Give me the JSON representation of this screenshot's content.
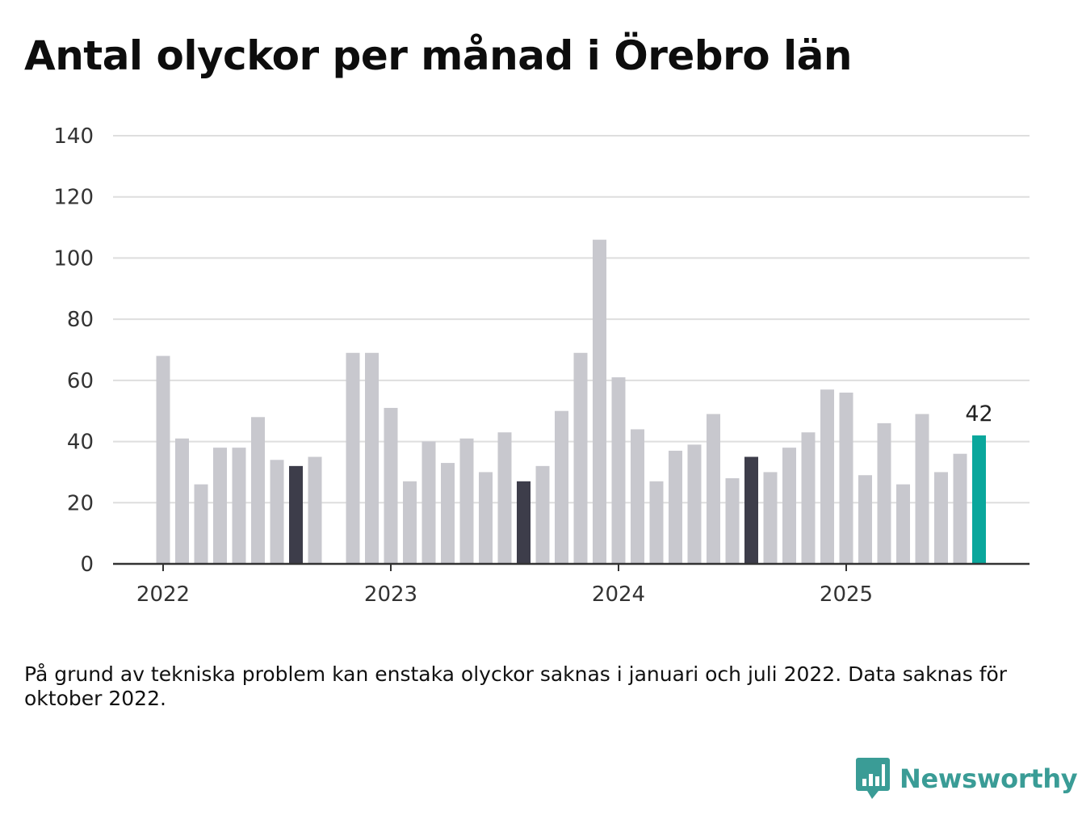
{
  "title": "Antal olyckor per månad i Örebro län",
  "note": "På grund av tekniska problem kan enstaka olyckor saknas i januari och juli 2022. Data saknas för oktober 2022.",
  "brand": {
    "name": "Newsworthy",
    "icon": "newsworthy-chart-bubble-icon",
    "color": "#3a9c96"
  },
  "chart_data": {
    "type": "bar",
    "ylim": [
      0,
      140
    ],
    "yticks": [
      0,
      20,
      40,
      60,
      80,
      100,
      120,
      140
    ],
    "xticks": [
      "2022",
      "2023",
      "2024",
      "2025"
    ],
    "grid": true,
    "colors": {
      "default": "#c8c8ce",
      "highlight": "#3d3d4a",
      "latest": "#0aa79c"
    },
    "bars": [
      {
        "month": "2022-01",
        "value": 68
      },
      {
        "month": "2022-02",
        "value": 41
      },
      {
        "month": "2022-03",
        "value": 26
      },
      {
        "month": "2022-04",
        "value": 38
      },
      {
        "month": "2022-05",
        "value": 38
      },
      {
        "month": "2022-06",
        "value": 48
      },
      {
        "month": "2022-07",
        "value": 34
      },
      {
        "month": "2022-08",
        "value": 32,
        "highlight": true
      },
      {
        "month": "2022-09",
        "value": 35
      },
      {
        "month": "2022-10",
        "value": null
      },
      {
        "month": "2022-11",
        "value": 69
      },
      {
        "month": "2022-12",
        "value": 69
      },
      {
        "month": "2023-01",
        "value": 51
      },
      {
        "month": "2023-02",
        "value": 27
      },
      {
        "month": "2023-03",
        "value": 40
      },
      {
        "month": "2023-04",
        "value": 33
      },
      {
        "month": "2023-05",
        "value": 41
      },
      {
        "month": "2023-06",
        "value": 30
      },
      {
        "month": "2023-07",
        "value": 43
      },
      {
        "month": "2023-08",
        "value": 27,
        "highlight": true
      },
      {
        "month": "2023-09",
        "value": 32
      },
      {
        "month": "2023-10",
        "value": 50
      },
      {
        "month": "2023-11",
        "value": 69
      },
      {
        "month": "2023-12",
        "value": 106
      },
      {
        "month": "2024-01",
        "value": 61
      },
      {
        "month": "2024-02",
        "value": 44
      },
      {
        "month": "2024-03",
        "value": 27
      },
      {
        "month": "2024-04",
        "value": 37
      },
      {
        "month": "2024-05",
        "value": 39
      },
      {
        "month": "2024-06",
        "value": 49
      },
      {
        "month": "2024-07",
        "value": 28
      },
      {
        "month": "2024-08",
        "value": 35,
        "highlight": true
      },
      {
        "month": "2024-09",
        "value": 30
      },
      {
        "month": "2024-10",
        "value": 38
      },
      {
        "month": "2024-11",
        "value": 43
      },
      {
        "month": "2024-12",
        "value": 57
      },
      {
        "month": "2025-01",
        "value": 56
      },
      {
        "month": "2025-02",
        "value": 29
      },
      {
        "month": "2025-03",
        "value": 46
      },
      {
        "month": "2025-04",
        "value": 26
      },
      {
        "month": "2025-05",
        "value": 49
      },
      {
        "month": "2025-06",
        "value": 30
      },
      {
        "month": "2025-07",
        "value": 36
      },
      {
        "month": "2025-08",
        "value": 42,
        "latest": true,
        "label": "42"
      }
    ]
  }
}
